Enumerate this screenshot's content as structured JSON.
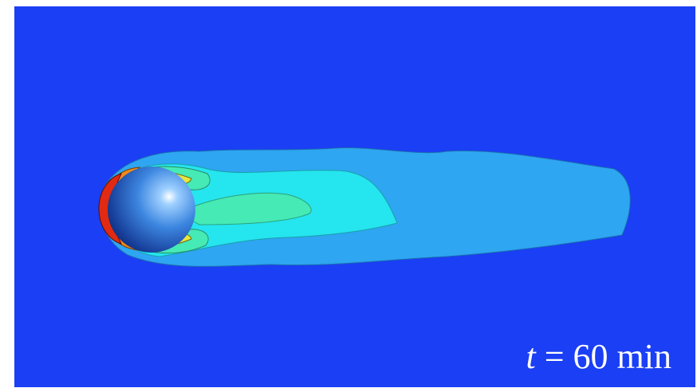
{
  "caption": {
    "symbol": "t",
    "text": "= 60 min"
  }
}
